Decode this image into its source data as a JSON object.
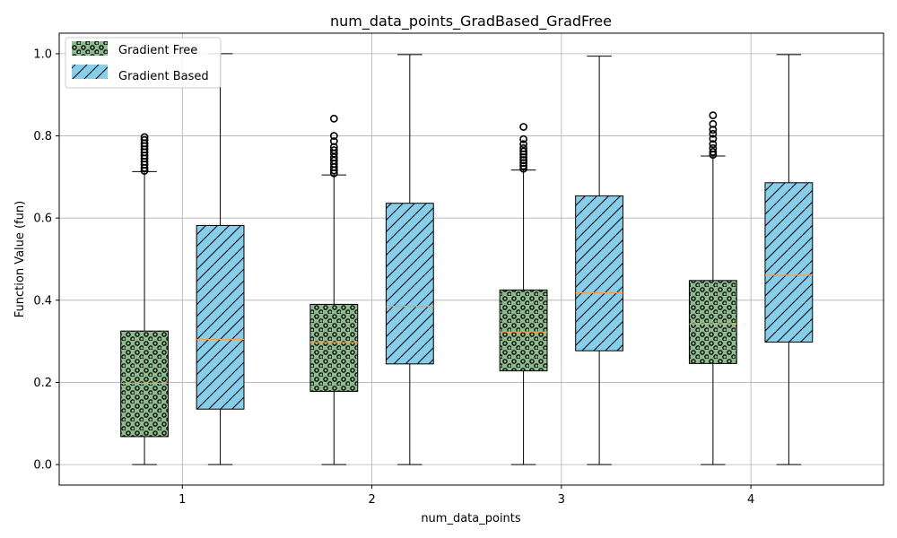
{
  "chart_data": {
    "type": "box",
    "title": "num_data_points_GradBased_GradFree",
    "xlabel": "num_data_points",
    "ylabel": "Function Value (fun)",
    "categories": [
      "1",
      "2",
      "3",
      "4"
    ],
    "xlim": [
      0.35,
      4.7
    ],
    "ylim": [
      -0.05,
      1.05
    ],
    "yticks": [
      0.0,
      0.2,
      0.4,
      0.6,
      0.8,
      1.0
    ],
    "ytick_labels": [
      "0.0",
      "0.2",
      "0.4",
      "0.6",
      "0.8",
      "1.0"
    ],
    "grid": true,
    "legend_position": "top-left",
    "series": [
      {
        "name": "Gradient Free",
        "color": "#8fbc8f",
        "hatch": "dots",
        "offset": -0.2,
        "boxes": [
          {
            "q1": 0.068,
            "median": 0.198,
            "q3": 0.325,
            "whisker_low": 0.0,
            "whisker_high": 0.713,
            "outliers": [
              0.715,
              0.722,
              0.73,
              0.737,
              0.745,
              0.752,
              0.76,
              0.767,
              0.775,
              0.782,
              0.79,
              0.797
            ]
          },
          {
            "q1": 0.178,
            "median": 0.297,
            "q3": 0.39,
            "whisker_low": 0.0,
            "whisker_high": 0.705,
            "outliers": [
              0.709,
              0.716,
              0.724,
              0.732,
              0.74,
              0.748,
              0.757,
              0.765,
              0.773,
              0.787,
              0.8,
              0.842
            ]
          },
          {
            "q1": 0.228,
            "median": 0.323,
            "q3": 0.425,
            "whisker_low": 0.0,
            "whisker_high": 0.717,
            "outliers": [
              0.72,
              0.727,
              0.734,
              0.741,
              0.748,
              0.755,
              0.762,
              0.77,
              0.78,
              0.792,
              0.822
            ]
          },
          {
            "q1": 0.246,
            "median": 0.342,
            "q3": 0.448,
            "whisker_low": 0.0,
            "whisker_high": 0.751,
            "outliers": [
              0.754,
              0.761,
              0.77,
              0.78,
              0.793,
              0.805,
              0.815,
              0.829,
              0.85
            ]
          }
        ]
      },
      {
        "name": "Gradient Based",
        "color": "#87ceeb",
        "hatch": "diagonal",
        "offset": 0.2,
        "boxes": [
          {
            "q1": 0.135,
            "median": 0.305,
            "q3": 0.582,
            "whisker_low": 0.0,
            "whisker_high": 1.0,
            "outliers": []
          },
          {
            "q1": 0.245,
            "median": 0.385,
            "q3": 0.636,
            "whisker_low": 0.0,
            "whisker_high": 0.998,
            "outliers": []
          },
          {
            "q1": 0.277,
            "median": 0.418,
            "q3": 0.654,
            "whisker_low": 0.0,
            "whisker_high": 0.994,
            "outliers": []
          },
          {
            "q1": 0.298,
            "median": 0.461,
            "q3": 0.686,
            "whisker_low": 0.0,
            "whisker_high": 0.998,
            "outliers": []
          }
        ]
      }
    ],
    "median_color": "#f0a050"
  }
}
